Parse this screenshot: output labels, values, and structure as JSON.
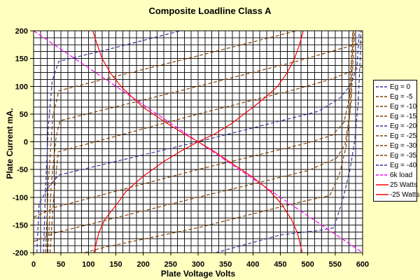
{
  "colors": {
    "background": "#FFFFC0",
    "plot_background": "#FFFFFF",
    "grid": "#000000",
    "axis": "#000000",
    "blue_series": "#3333A0",
    "brown_series": "#804000",
    "load_series": "#FF00FF",
    "watts_series": "#FF0000"
  },
  "chart_data": {
    "type": "line",
    "title": "Composite Loadline Class A",
    "xlabel": "Plate Voltage  Volts",
    "ylabel": "Plate Current  mA.",
    "xlim": [
      0,
      600
    ],
    "ylim": [
      -200,
      200
    ],
    "x_ticks": [
      0,
      50,
      100,
      150,
      200,
      250,
      300,
      350,
      400,
      450,
      500,
      550,
      600
    ],
    "y_ticks": [
      200,
      150,
      100,
      50,
      0,
      -50,
      -100,
      -150,
      -200
    ],
    "minor_grid_step_x": 12.5,
    "minor_grid_step_y": 12.5,
    "grid": true,
    "legend_position": "right",
    "series": [
      {
        "name": "Eg = 0",
        "color": "#3333A0",
        "dash": "5 3",
        "points": [
          [
            18,
            -200
          ],
          [
            22,
            -80
          ],
          [
            27,
            30
          ],
          [
            34,
            110
          ],
          [
            46,
            145
          ],
          [
            150,
            170
          ],
          [
            268,
            200
          ]
        ]
      },
      {
        "name": "Eg = -5",
        "color": "#804000",
        "dash": "5 3",
        "points": [
          [
            22,
            -200
          ],
          [
            27,
            -70
          ],
          [
            35,
            45
          ],
          [
            46,
            92
          ],
          [
            150,
            118
          ],
          [
            300,
            155
          ],
          [
            480,
            200
          ]
        ]
      },
      {
        "name": "Eg = -10",
        "color": "#804000",
        "dash": "5 3",
        "points": [
          [
            26,
            -200
          ],
          [
            32,
            -80
          ],
          [
            41,
            8
          ],
          [
            48,
            38
          ],
          [
            300,
            100
          ],
          [
            480,
            145
          ],
          [
            540,
            162
          ],
          [
            575,
            172
          ],
          [
            600,
            180
          ]
        ]
      },
      {
        "name": "Eg = -15",
        "color": "#804000",
        "dash": "5 3",
        "points": [
          [
            30,
            -200
          ],
          [
            37,
            -95
          ],
          [
            45,
            -18
          ],
          [
            300,
            50
          ],
          [
            480,
            95
          ],
          [
            540,
            112
          ],
          [
            575,
            125
          ],
          [
            600,
            136
          ]
        ]
      },
      {
        "name": "Eg = -20",
        "color": "#3333A0",
        "dash": "5 3",
        "points": [
          [
            6,
            -200
          ],
          [
            10,
            -112
          ],
          [
            25,
            -84
          ],
          [
            46,
            -60
          ],
          [
            300,
            0
          ],
          [
            520,
            55
          ],
          [
            560,
            80
          ],
          [
            580,
            105
          ],
          [
            590,
            140
          ],
          [
            594,
            200
          ]
        ]
      },
      {
        "name": "Eg = -25",
        "color": "#804000",
        "dash": "5 3",
        "points": [
          [
            0,
            -136
          ],
          [
            40,
            -118
          ],
          [
            300,
            -50
          ],
          [
            500,
            -2
          ],
          [
            545,
            12
          ],
          [
            566,
            35
          ],
          [
            576,
            80
          ],
          [
            582,
            200
          ]
        ]
      },
      {
        "name": "Eg = -30",
        "color": "#804000",
        "dash": "5 3",
        "points": [
          [
            0,
            -180
          ],
          [
            40,
            -164
          ],
          [
            300,
            -100
          ],
          [
            500,
            -52
          ],
          [
            552,
            -30
          ],
          [
            568,
            -5
          ],
          [
            577,
            55
          ],
          [
            583,
            200
          ]
        ]
      },
      {
        "name": "Eg = -35",
        "color": "#804000",
        "dash": "5 3",
        "points": [
          [
            93,
            -200
          ],
          [
            130,
            -190
          ],
          [
            300,
            -155
          ],
          [
            480,
            -110
          ],
          [
            540,
            -97
          ],
          [
            558,
            -58
          ],
          [
            570,
            -8
          ],
          [
            579,
            70
          ],
          [
            585,
            200
          ]
        ]
      },
      {
        "name": "Eg = -40",
        "color": "#3333A0",
        "dash": "5 3",
        "points": [
          [
            332,
            -200
          ],
          [
            450,
            -168
          ],
          [
            520,
            -160
          ],
          [
            548,
            -155
          ],
          [
            565,
            -100
          ],
          [
            578,
            -45
          ],
          [
            586,
            5
          ],
          [
            592,
            70
          ],
          [
            596,
            160
          ],
          [
            597,
            200
          ]
        ]
      },
      {
        "name": "6k load",
        "color": "#FF00FF",
        "dash": "6 3",
        "points": [
          [
            0,
            200
          ],
          [
            600,
            -200
          ]
        ]
      },
      {
        "name": "25 Watts",
        "color": "#FF0000",
        "dash": "",
        "points": [
          [
            108,
            200
          ],
          [
            115,
            178
          ],
          [
            125,
            150
          ],
          [
            140,
            124
          ],
          [
            160,
            99
          ],
          [
            180,
            80
          ],
          [
            200,
            62
          ],
          [
            225,
            45
          ],
          [
            250,
            29
          ],
          [
            275,
            14
          ],
          [
            300,
            0
          ],
          [
            330,
            -18
          ],
          [
            360,
            -38
          ],
          [
            400,
            -64
          ],
          [
            430,
            -88
          ],
          [
            452,
            -112
          ],
          [
            470,
            -140
          ],
          [
            481,
            -164
          ],
          [
            490,
            -200
          ]
        ]
      },
      {
        "name": "-25 Watts",
        "color": "#FF0000",
        "dash": "",
        "points": [
          [
            110,
            -200
          ],
          [
            119,
            -164
          ],
          [
            130,
            -140
          ],
          [
            152,
            -112
          ],
          [
            170,
            -88
          ],
          [
            200,
            -62
          ],
          [
            240,
            -34
          ],
          [
            270,
            -16
          ],
          [
            300,
            0
          ],
          [
            330,
            14
          ],
          [
            360,
            32
          ],
          [
            400,
            62
          ],
          [
            425,
            82
          ],
          [
            445,
            100
          ],
          [
            462,
            124
          ],
          [
            475,
            148
          ],
          [
            484,
            172
          ],
          [
            492,
            200
          ]
        ]
      }
    ]
  }
}
